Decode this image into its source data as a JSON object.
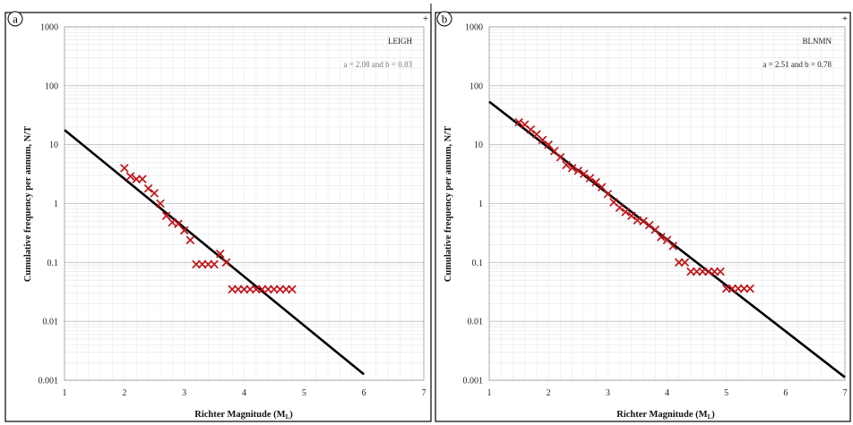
{
  "chart_data": [
    {
      "type": "scatter",
      "panel_label": "a",
      "station": "LEIGH",
      "equation": "a = 2.08 and b = 0.83",
      "xlabel": "Richter Magnitude (M",
      "xlabel_sub": "L",
      "xlabel_close": ")",
      "ylabel": "Cumulative frequency per annum, N/T",
      "xlim": [
        1,
        7
      ],
      "ylim": [
        0.001,
        1000
      ],
      "yscale": "log",
      "grid": true,
      "x_ticks": [
        "1",
        "2",
        "3",
        "4",
        "5",
        "6",
        "7"
      ],
      "y_ticks": [
        "0.001",
        "0.01",
        "0.1",
        "1",
        "10",
        "100",
        "1000"
      ],
      "fit_line": {
        "a": 2.08,
        "b": 0.83,
        "x_range": [
          1,
          6
        ]
      },
      "series": [
        {
          "color": "#c0151a",
          "marker": "x",
          "x": [
            2.0,
            2.1,
            2.2,
            2.3,
            2.4,
            2.5,
            2.6,
            2.7,
            2.8,
            2.9,
            3.0,
            3.1,
            3.2,
            3.3,
            3.4,
            3.5,
            3.6,
            3.7,
            3.8,
            3.9,
            4.0,
            4.1,
            4.2,
            4.3,
            4.4,
            4.5,
            4.6,
            4.7,
            4.8
          ],
          "y": [
            4.0,
            2.9,
            2.6,
            2.6,
            1.8,
            1.5,
            1.0,
            0.62,
            0.48,
            0.45,
            0.35,
            0.24,
            0.093,
            0.093,
            0.093,
            0.093,
            0.14,
            0.1,
            0.035,
            0.035,
            0.035,
            0.035,
            0.035,
            0.035,
            0.035,
            0.035,
            0.035,
            0.035,
            0.035
          ]
        }
      ]
    },
    {
      "type": "scatter",
      "panel_label": "b",
      "station": "BLNMN",
      "equation": "a = 2.51 and b = 0.78",
      "xlabel": "Richter Magnitude (M",
      "xlabel_sub": "L",
      "xlabel_close": ")",
      "ylabel": "Cumulative frequency per annum, N/T",
      "xlim": [
        1,
        7
      ],
      "ylim": [
        0.001,
        1000
      ],
      "yscale": "log",
      "grid": true,
      "x_ticks": [
        "1",
        "2",
        "3",
        "4",
        "5",
        "6",
        "7"
      ],
      "y_ticks": [
        "0.001",
        "0.01",
        "0.1",
        "1",
        "10",
        "100",
        "1000"
      ],
      "fit_line": {
        "a": 2.51,
        "b": 0.78,
        "x_range": [
          1,
          7
        ]
      },
      "series": [
        {
          "color": "#c0151a",
          "marker": "x",
          "x": [
            1.5,
            1.6,
            1.7,
            1.8,
            1.9,
            2.0,
            2.1,
            2.2,
            2.3,
            2.4,
            2.5,
            2.6,
            2.7,
            2.8,
            2.9,
            3.0,
            3.1,
            3.2,
            3.3,
            3.4,
            3.5,
            3.6,
            3.7,
            3.8,
            3.9,
            4.0,
            4.1,
            4.2,
            4.3,
            4.4,
            4.5,
            4.6,
            4.7,
            4.8,
            4.9,
            5.0,
            5.1,
            5.2,
            5.3,
            5.4
          ],
          "y": [
            24,
            22,
            18,
            15,
            12,
            10,
            7.8,
            6.1,
            4.5,
            4.0,
            3.6,
            3.2,
            2.7,
            2.3,
            1.9,
            1.45,
            1.05,
            0.85,
            0.72,
            0.62,
            0.52,
            0.5,
            0.43,
            0.36,
            0.27,
            0.24,
            0.19,
            0.1,
            0.1,
            0.07,
            0.07,
            0.07,
            0.07,
            0.07,
            0.07,
            0.036,
            0.036,
            0.036,
            0.036,
            0.036
          ]
        }
      ]
    }
  ]
}
